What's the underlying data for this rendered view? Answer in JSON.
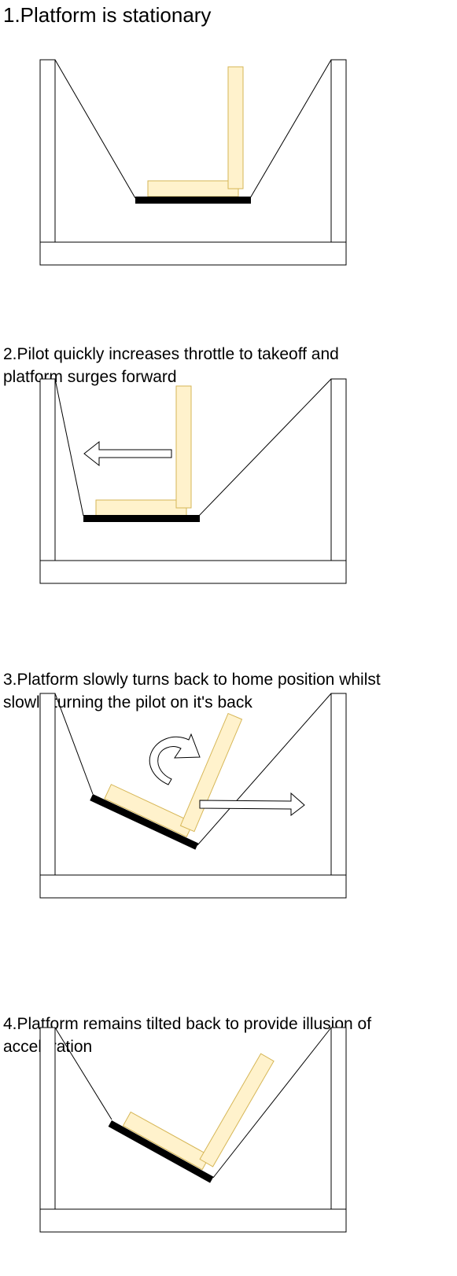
{
  "steps": [
    {
      "caption": "1.Platform is stationary"
    },
    {
      "caption": "2.Pilot quickly increases throttle to takeoff and\nplatform surges forward"
    },
    {
      "caption": "3.Platform slowly turns back to home position whilst\nslowly turning the pilot on it's back"
    },
    {
      "caption": "4.Platform remains tilted back to provide illusion of\nacceleration"
    }
  ]
}
